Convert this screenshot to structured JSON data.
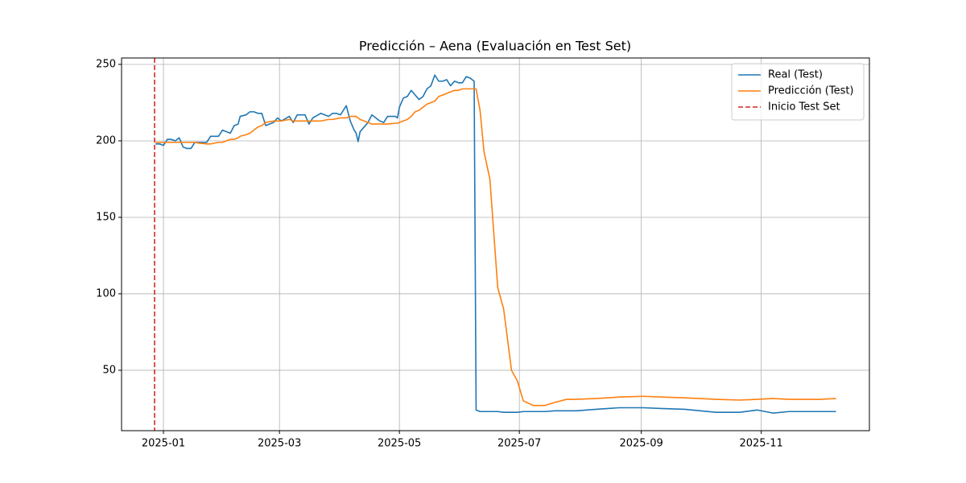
{
  "chart_data": {
    "type": "line",
    "title": "Predicción – Aena (Evaluación en Test Set)",
    "x": [
      -4,
      -2,
      0,
      2,
      4,
      6,
      8,
      10,
      12,
      14,
      16,
      18,
      22,
      24,
      28,
      30,
      34,
      36,
      38,
      39,
      42,
      44,
      46,
      48,
      50,
      52,
      56,
      58,
      60,
      64,
      66,
      68,
      72,
      74,
      76,
      80,
      84,
      86,
      88,
      90,
      92,
      93,
      95,
      97,
      98,
      99,
      100,
      104,
      106,
      110,
      112,
      114,
      118,
      119,
      120,
      122,
      124,
      126,
      128,
      130,
      132,
      134,
      136,
      138,
      140,
      142,
      144,
      146,
      148,
      150,
      152,
      154,
      156,
      158,
      159,
      161,
      163,
      166,
      170,
      173,
      177,
      180,
      183,
      188,
      194,
      199,
      205,
      210,
      220,
      232,
      244,
      253,
      265,
      281,
      293,
      302,
      310,
      318,
      326,
      334,
      342
    ],
    "series": [
      {
        "name": "Real (Test)",
        "color": "#1f77b4",
        "values": [
          198,
          198,
          197,
          201,
          201,
          200,
          202,
          196,
          195,
          195,
          199,
          199,
          199,
          203,
          203,
          207,
          205,
          210,
          211,
          216,
          217,
          219,
          219,
          218,
          218,
          210,
          212,
          215,
          213,
          216,
          212,
          217,
          217,
          211,
          215,
          218,
          216,
          218,
          218,
          217,
          221,
          223,
          213,
          207,
          205,
          199.5,
          206,
          212,
          217,
          213,
          212,
          216,
          216,
          215,
          222,
          228,
          229,
          233,
          230,
          227,
          229,
          234,
          236,
          243,
          239,
          239,
          240,
          236,
          239,
          238,
          238,
          242,
          241,
          239,
          24,
          23,
          23,
          23,
          23,
          22.5,
          22.5,
          22.5,
          23,
          23,
          23,
          23.5,
          23.5,
          23.5,
          24.5,
          25.5,
          25.5,
          25,
          24.5,
          22.5,
          22.5,
          24,
          22,
          23,
          23,
          23,
          23
        ]
      },
      {
        "name": "Predicción (Test)",
        "color": "#ff7f0e",
        "values": [
          199,
          199,
          199,
          199,
          199,
          199,
          199,
          199,
          199,
          199,
          199,
          198.5,
          198,
          198,
          199,
          199,
          201,
          201,
          202,
          203,
          204,
          205,
          207,
          209,
          210,
          212,
          213,
          213,
          213,
          214,
          213,
          213,
          213,
          213,
          213,
          213,
          214,
          214,
          214.5,
          215,
          215,
          215,
          216,
          216,
          216,
          215,
          214,
          212,
          211,
          211,
          211,
          211,
          211.5,
          211.5,
          212,
          213,
          214,
          216,
          219,
          220,
          222,
          224,
          225,
          226,
          229,
          230,
          231,
          232,
          233,
          233,
          234,
          234,
          234,
          234,
          234,
          220,
          193,
          175,
          104,
          90,
          50,
          43,
          30,
          27,
          27,
          29,
          31,
          31,
          31.5,
          32.5,
          33,
          32.5,
          32,
          31,
          30.5,
          31,
          31.5,
          31,
          31,
          31,
          31.5
        ]
      }
    ],
    "vlines": [
      {
        "name": "Inicio Test Set",
        "x": -4.5,
        "color": "#d62728"
      }
    ],
    "xlim": [
      -21.3,
      359
    ],
    "xticks": [
      {
        "value": 0,
        "label": "2025-01"
      },
      {
        "value": 59,
        "label": "2025-03"
      },
      {
        "value": 120,
        "label": "2025-05"
      },
      {
        "value": 181,
        "label": "2025-07"
      },
      {
        "value": 243,
        "label": "2025-09"
      },
      {
        "value": 304,
        "label": "2025-11"
      }
    ],
    "ylim": [
      10.5,
      254.2
    ],
    "yticks": [
      50,
      100,
      150,
      200,
      250
    ],
    "grid": true,
    "legend": "upper right"
  }
}
